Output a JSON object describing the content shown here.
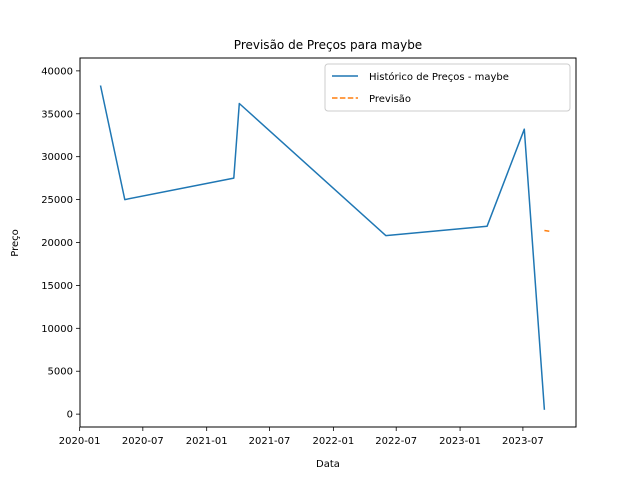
{
  "chart_data": {
    "type": "line",
    "title": "Previsão de Preços para maybe",
    "xlabel": "Data",
    "ylabel": "Preço",
    "x_tick_labels": [
      "2020-01",
      "2020-07",
      "2021-01",
      "2021-07",
      "2022-01",
      "2022-07",
      "2023-01",
      "2023-07"
    ],
    "y_tick_labels": [
      "0",
      "5000",
      "10000",
      "15000",
      "20000",
      "25000",
      "30000",
      "35000",
      "40000"
    ],
    "ylim": [
      -1500,
      41500
    ],
    "xlim": [
      "2020-01-02",
      "2023-12-01"
    ],
    "grid": false,
    "legend_position": "top-right",
    "series": [
      {
        "name": "Histórico de Preços - maybe",
        "color": "#1f77b4",
        "style": "solid",
        "points": [
          {
            "x": "2020-03-01",
            "y": 38300
          },
          {
            "x": "2020-05-10",
            "y": 25000
          },
          {
            "x": "2021-03-20",
            "y": 27500
          },
          {
            "x": "2021-04-05",
            "y": 36200
          },
          {
            "x": "2022-06-01",
            "y": 20800
          },
          {
            "x": "2023-03-20",
            "y": 21900
          },
          {
            "x": "2023-07-05",
            "y": 33200
          },
          {
            "x": "2023-09-01",
            "y": 500
          }
        ]
      },
      {
        "name": "Previsão",
        "color": "#ff7f0e",
        "style": "dashed",
        "points": [
          {
            "x": "2023-09-01",
            "y": 21400
          },
          {
            "x": "2023-09-15",
            "y": 21300
          }
        ]
      }
    ]
  }
}
